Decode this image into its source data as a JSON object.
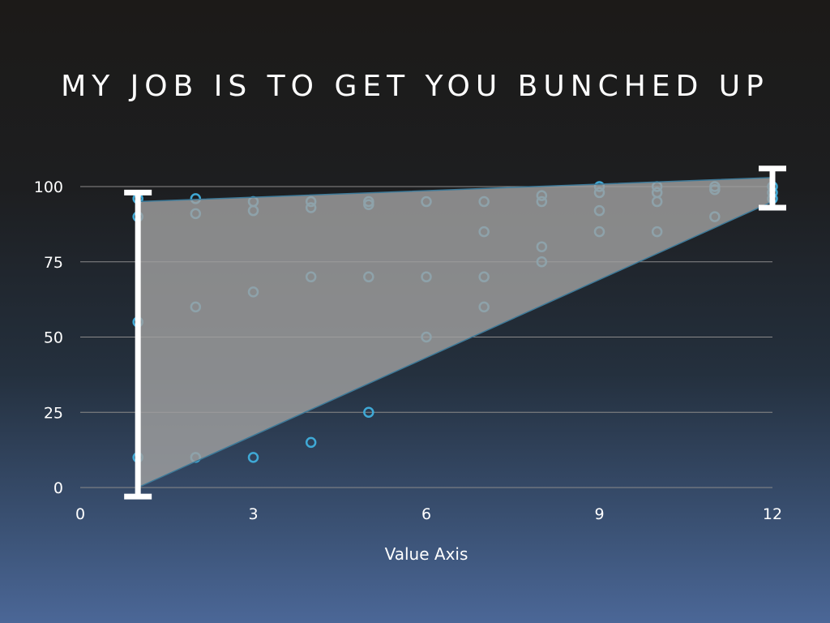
{
  "slide": {
    "title": "MY JOB IS TO GET YOU BUNCHED UP"
  },
  "chart_data": {
    "type": "scatter",
    "title": "",
    "xlabel": "Value Axis",
    "ylabel": "",
    "xlim": [
      0,
      12
    ],
    "ylim": [
      0,
      100
    ],
    "x_ticks": [
      0,
      3,
      6,
      9,
      12
    ],
    "y_ticks": [
      0,
      25,
      50,
      75,
      100
    ],
    "grid": "horizontal",
    "colors": {
      "marker": "#3fa9d6",
      "band_fill": "#a0a0a0",
      "band_edge": "#3e7a99",
      "grid": "#8a8a8a",
      "error_bar": "#ffffff"
    },
    "series": [
      {
        "x": [
          1,
          1,
          1,
          1,
          2,
          2,
          2,
          2,
          3,
          3,
          3,
          3,
          4,
          4,
          4,
          4,
          5,
          5,
          5,
          5,
          6,
          6,
          6,
          7,
          7,
          7,
          7,
          8,
          8,
          8,
          8,
          9,
          9,
          9,
          9,
          10,
          10,
          10,
          10,
          11,
          11,
          11,
          12,
          12,
          12
        ],
        "y": [
          90,
          96,
          55,
          10,
          96,
          91,
          60,
          10,
          95,
          92,
          65,
          10,
          95,
          93,
          70,
          15,
          95,
          94,
          70,
          25,
          95,
          70,
          50,
          95,
          85,
          70,
          60,
          97,
          80,
          75,
          95,
          100,
          98,
          92,
          85,
          100,
          98,
          95,
          85,
          100,
          99,
          90,
          100,
          98,
          96
        ]
      }
    ],
    "band": {
      "x": [
        1,
        12
      ],
      "upper": [
        95,
        103
      ],
      "lower": [
        0,
        95
      ]
    },
    "error_bars": [
      {
        "x": 1,
        "low": -3,
        "high": 98
      },
      {
        "x": 12,
        "low": 93,
        "high": 106
      }
    ]
  }
}
